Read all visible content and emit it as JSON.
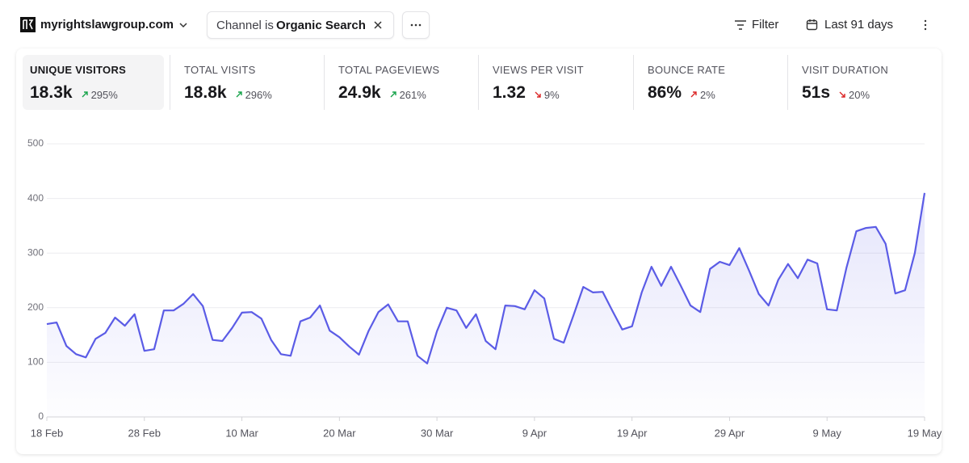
{
  "header": {
    "site": "myrightslawgroup.com",
    "filter_label": "Channel is",
    "filter_value": "Organic Search",
    "filter_button": "Filter",
    "period": "Last 91 days"
  },
  "stats": [
    {
      "label": "UNIQUE VISITORS",
      "value": "18.3k",
      "change": "295%"
    },
    {
      "label": "TOTAL VISITS",
      "value": "18.8k",
      "change": "296%"
    },
    {
      "label": "TOTAL PAGEVIEWS",
      "value": "24.9k",
      "change": "261%"
    },
    {
      "label": "VIEWS PER VISIT",
      "value": "1.32",
      "change": "9%"
    },
    {
      "label": "BOUNCE RATE",
      "value": "86%",
      "change": "2%"
    },
    {
      "label": "VISIT DURATION",
      "value": "51s",
      "change": "20%"
    }
  ],
  "chart_data": {
    "type": "line",
    "color": "#5b5ce6",
    "grid": true,
    "ylim": [
      0,
      500
    ],
    "yticks": [
      0,
      100,
      200,
      300,
      400,
      500
    ],
    "categories": [
      "18 Feb",
      null,
      null,
      null,
      null,
      null,
      null,
      null,
      null,
      null,
      "28 Feb",
      null,
      null,
      null,
      null,
      null,
      null,
      null,
      null,
      null,
      "10 Mar",
      null,
      null,
      null,
      null,
      null,
      null,
      null,
      null,
      null,
      "20 Mar",
      null,
      null,
      null,
      null,
      null,
      null,
      null,
      null,
      null,
      "30 Mar",
      null,
      null,
      null,
      null,
      null,
      null,
      null,
      null,
      null,
      "9 Apr",
      null,
      null,
      null,
      null,
      null,
      null,
      null,
      null,
      null,
      "19 Apr",
      null,
      null,
      null,
      null,
      null,
      null,
      null,
      null,
      null,
      "29 Apr",
      null,
      null,
      null,
      null,
      null,
      null,
      null,
      null,
      null,
      "9 May",
      null,
      null,
      null,
      null,
      null,
      null,
      null,
      null,
      null,
      "19 May"
    ],
    "values": [
      170,
      173,
      130,
      115,
      109,
      143,
      154,
      182,
      167,
      188,
      121,
      124,
      195,
      195,
      207,
      225,
      203,
      141,
      139,
      163,
      191,
      192,
      180,
      141,
      115,
      112,
      175,
      182,
      204,
      158,
      146,
      129,
      114,
      158,
      192,
      206,
      175,
      175,
      112,
      98,
      157,
      200,
      195,
      163,
      188,
      139,
      124,
      204,
      203,
      197,
      232,
      217,
      143,
      136,
      186,
      238,
      228,
      229,
      194,
      160,
      166,
      228,
      275,
      240,
      275,
      240,
      204,
      192,
      271,
      284,
      278,
      309,
      268,
      225,
      204,
      251,
      280,
      254,
      288,
      281,
      197,
      195,
      274,
      340,
      346,
      348,
      317,
      226,
      232,
      300,
      410
    ]
  }
}
